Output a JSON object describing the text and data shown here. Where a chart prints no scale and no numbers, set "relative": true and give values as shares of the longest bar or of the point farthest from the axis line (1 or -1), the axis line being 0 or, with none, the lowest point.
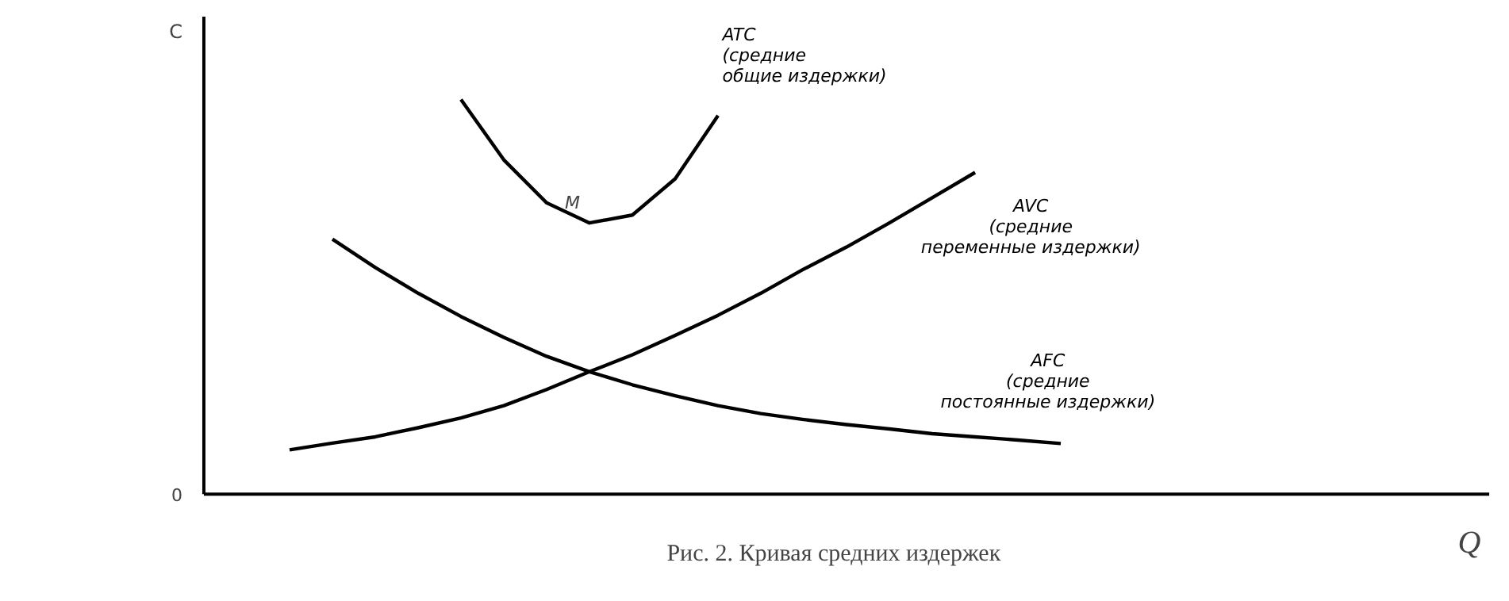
{
  "chart_data": {
    "type": "line",
    "relative": true,
    "xlabel": "Q",
    "ylabel": "C",
    "categories": [
      null,
      null,
      null,
      null,
      null,
      null,
      null,
      null,
      null,
      null,
      null,
      null,
      null,
      null,
      null,
      null,
      null,
      null,
      null,
      null,
      null,
      null,
      null,
      null,
      null,
      null,
      null,
      null,
      null,
      null,
      null
    ],
    "series": [
      {
        "name": "ATC\n(средние\nобщие издержки)",
        "color": "#000000",
        "values": [
          null,
          null,
          null,
          null,
          null,
          null,
          1,
          0.847,
          0.738,
          0.687,
          0.707,
          0.799,
          0.959,
          null,
          null,
          null,
          null,
          null,
          null,
          null,
          null,
          null,
          null,
          null,
          null,
          null,
          null,
          null,
          null,
          null,
          null
        ]
      },
      {
        "name": "AVC\n(средние\nпеременные издержки)",
        "color": "#000000",
        "values": [
          null,
          null,
          0.112,
          0.129,
          0.145,
          0.168,
          0.193,
          0.224,
          0.265,
          0.31,
          0.353,
          0.402,
          0.453,
          0.509,
          0.57,
          0.626,
          0.687,
          0.751,
          0.815,
          null,
          null,
          null,
          null,
          null,
          null,
          null,
          null,
          null,
          null,
          null,
          null
        ]
      },
      {
        "name": "AFC\n(средние\nпостоянные издержки)",
        "color": "#000000",
        "values": [
          null,
          null,
          null,
          0.646,
          0.574,
          0.509,
          0.45,
          0.397,
          0.349,
          0.31,
          0.277,
          0.249,
          0.224,
          0.204,
          0.189,
          0.176,
          0.165,
          0.153,
          0.145,
          0.137,
          0.128,
          null,
          null,
          null,
          null,
          null,
          null,
          null,
          null,
          null,
          null
        ]
      }
    ],
    "annotations": [
      "M",
      "0",
      "Рис. 2. Кривая средних издержек"
    ]
  }
}
